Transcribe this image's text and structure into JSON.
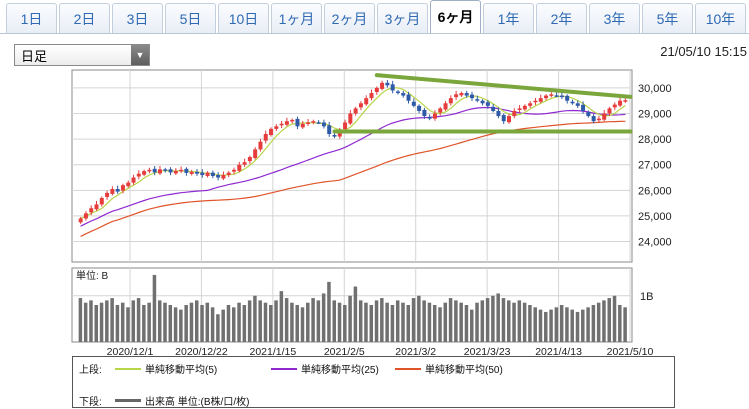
{
  "tabs": [
    {
      "label": "1日",
      "active": false
    },
    {
      "label": "2日",
      "active": false
    },
    {
      "label": "3日",
      "active": false
    },
    {
      "label": "5日",
      "active": false
    },
    {
      "label": "10日",
      "active": false
    },
    {
      "label": "1ヶ月",
      "active": false
    },
    {
      "label": "2ヶ月",
      "active": false
    },
    {
      "label": "3ヶ月",
      "active": false
    },
    {
      "label": "6ヶ月",
      "active": true
    },
    {
      "label": "1年",
      "active": false
    },
    {
      "label": "2年",
      "active": false
    },
    {
      "label": "3年",
      "active": false
    },
    {
      "label": "5年",
      "active": false
    },
    {
      "label": "10年",
      "active": false
    }
  ],
  "period_select": {
    "value": "日足",
    "icon": "triangle-down-icon"
  },
  "timestamp": "21/05/10 15:15",
  "legend": {
    "upper_label": "上段:",
    "lower_label": "下段:",
    "items": [
      {
        "label": "単純移動平均(5)",
        "color": "#b7d64a"
      },
      {
        "label": "単純移動平均(25)",
        "color": "#8f2ad1"
      },
      {
        "label": "単純移動平均(50)",
        "color": "#e0542a"
      }
    ],
    "volume_item": {
      "label": "出来高 単位:(B株/口/枚)",
      "color": "#666666"
    }
  },
  "chart_data": [
    {
      "type": "candlestick",
      "x_tick_labels": [
        "2020/12/1",
        "2020/12/22",
        "2021/1/15",
        "2021/2/5",
        "2021/3/2",
        "2021/3/23",
        "2021/4/13",
        "2021/5/10"
      ],
      "y_tick_labels": [
        "30,000",
        "29,000",
        "28,000",
        "27,000",
        "26,000",
        "25,000",
        "24,000"
      ],
      "y_ticks": [
        30000,
        29000,
        28000,
        27000,
        26000,
        25000,
        24000
      ],
      "ylim": [
        23200,
        30700
      ],
      "up_color": "#e63c3c",
      "down_color": "#2f5aa8",
      "close": [
        24900,
        25100,
        25300,
        25450,
        25700,
        25900,
        26050,
        25950,
        26200,
        26300,
        26500,
        26650,
        26750,
        26800,
        26700,
        26820,
        26780,
        26700,
        26760,
        26800,
        26680,
        26720,
        26650,
        26600,
        26690,
        26560,
        26500,
        26600,
        26690,
        26800,
        27000,
        27100,
        27300,
        27600,
        27900,
        28200,
        28400,
        28500,
        28600,
        28700,
        28750,
        28500,
        28600,
        28650,
        28700,
        28650,
        28500,
        28200,
        28100,
        28350,
        28650,
        29000,
        29200,
        29400,
        29600,
        29800,
        30000,
        30200,
        30100,
        29900,
        29800,
        29700,
        29500,
        29300,
        29100,
        28900,
        28800,
        29000,
        29200,
        29400,
        29600,
        29750,
        29800,
        29700,
        29600,
        29500,
        29400,
        29300,
        29100,
        28900,
        28700,
        28900,
        29100,
        29200,
        29300,
        29400,
        29500,
        29600,
        29700,
        29750,
        29700,
        29650,
        29500,
        29400,
        29300,
        29100,
        28900,
        28700,
        28800,
        29000,
        29200,
        29350,
        29500,
        29520
      ],
      "volume": [
        0.95,
        0.85,
        0.9,
        0.8,
        0.85,
        0.9,
        0.95,
        0.8,
        0.85,
        0.75,
        0.9,
        0.95,
        0.8,
        0.85,
        1.45,
        0.9,
        0.85,
        0.8,
        0.75,
        0.7,
        0.8,
        0.85,
        0.9,
        0.8,
        0.85,
        0.75,
        0.6,
        0.7,
        0.8,
        0.75,
        0.85,
        0.8,
        0.9,
        1.0,
        0.9,
        0.85,
        0.8,
        0.9,
        1.1,
        0.95,
        0.85,
        0.8,
        0.75,
        0.85,
        0.95,
        0.9,
        1.05,
        1.3,
        0.9,
        0.85,
        0.8,
        1.0,
        1.2,
        0.9,
        0.85,
        0.8,
        0.9,
        0.95,
        0.85,
        0.8,
        0.9,
        0.85,
        0.8,
        0.95,
        1.0,
        0.9,
        0.85,
        0.8,
        0.75,
        0.85,
        0.95,
        0.9,
        0.85,
        0.8,
        0.7,
        0.85,
        0.9,
        0.95,
        1.0,
        1.05,
        0.95,
        0.9,
        0.85,
        0.9,
        0.85,
        0.8,
        0.75,
        0.7,
        0.65,
        0.7,
        0.75,
        0.8,
        0.75,
        0.7,
        0.65,
        0.7,
        0.75,
        0.8,
        0.85,
        0.9,
        0.95,
        1.0,
        0.8,
        0.75
      ],
      "volume_ylim": [
        0,
        1.6
      ],
      "volume_unit_label": "単位: B",
      "volume_tick_label": "1B",
      "volume_tick": 1.0,
      "trendlines": [
        {
          "name": "resistance",
          "color": "#7aa63b",
          "points": [
            [
              56,
              30500
            ],
            [
              104,
              29650
            ]
          ]
        },
        {
          "name": "support",
          "color": "#7aa63b",
          "points": [
            [
              48,
              28300
            ],
            [
              104,
              28300
            ]
          ]
        }
      ]
    }
  ]
}
